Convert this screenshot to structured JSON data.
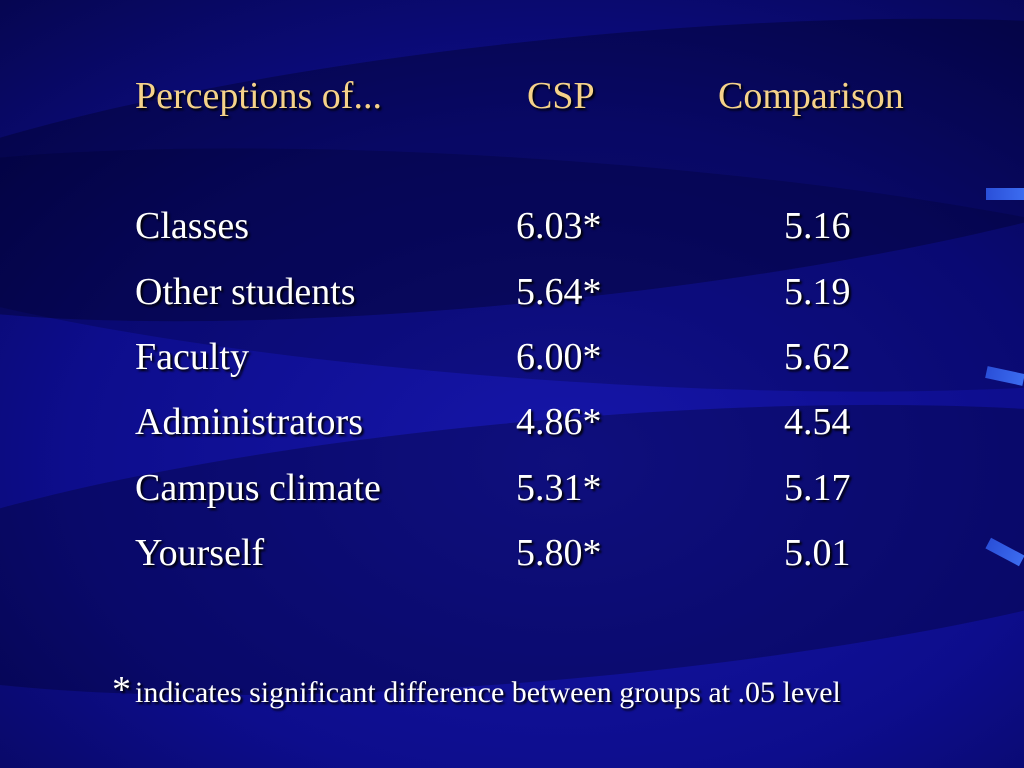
{
  "slide": {
    "headers": {
      "label": "Perceptions of...",
      "csp": "CSP",
      "comparison": "Comparison"
    },
    "rows": [
      {
        "label": "Classes",
        "csp": "6.03*",
        "comparison": "5.16"
      },
      {
        "label": "Other students",
        "csp": "5.64*",
        "comparison": "5.19"
      },
      {
        "label": "Faculty",
        "csp": "6.00*",
        "comparison": "5.62"
      },
      {
        "label": "Administrators",
        "csp": "4.86*",
        "comparison": "4.54"
      },
      {
        "label": "Campus climate",
        "csp": "5.31*",
        "comparison": "5.17"
      },
      {
        "label": "Yourself",
        "csp": "5.80*",
        "comparison": "5.01"
      }
    ],
    "footnote": {
      "symbol": "*",
      "text": "indicates significant difference between groups at .05 level"
    }
  },
  "colors": {
    "background": "#0c0c8a",
    "header_text": "#f5d28a",
    "body_text": "#ffffff",
    "accent": "#3c6cf0"
  }
}
